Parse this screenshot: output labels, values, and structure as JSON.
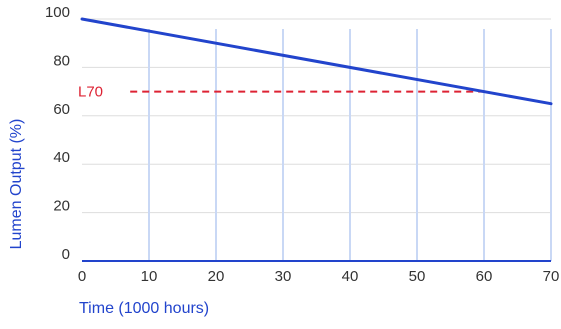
{
  "chart_data": {
    "type": "line",
    "title": "",
    "xlabel": "Time (1000 hours)",
    "ylabel": "Lumen Output (%)",
    "xlim": [
      0,
      70
    ],
    "ylim": [
      0,
      100
    ],
    "x_ticks": [
      "0",
      "10",
      "20",
      "30",
      "40",
      "50",
      "60",
      "70"
    ],
    "y_ticks": [
      "0",
      "20",
      "40",
      "60",
      "80",
      "100"
    ],
    "grid": true,
    "legend": "none",
    "series": [
      {
        "x": [
          0,
          70
        ],
        "y": [
          100,
          65
        ],
        "color": "#2244cc"
      }
    ],
    "reference_lines": [
      {
        "label": "L70",
        "y": 70,
        "x_start": 6,
        "x_end": 60,
        "color": "#dd2233",
        "style": "dashed"
      }
    ],
    "colors": {
      "axis_title": "#2244cc",
      "tick_label": "#333333",
      "vertical_grid": "#c9d8f5",
      "horizontal_grid": "#dddddd",
      "x_axis_line": "#2244cc"
    }
  }
}
